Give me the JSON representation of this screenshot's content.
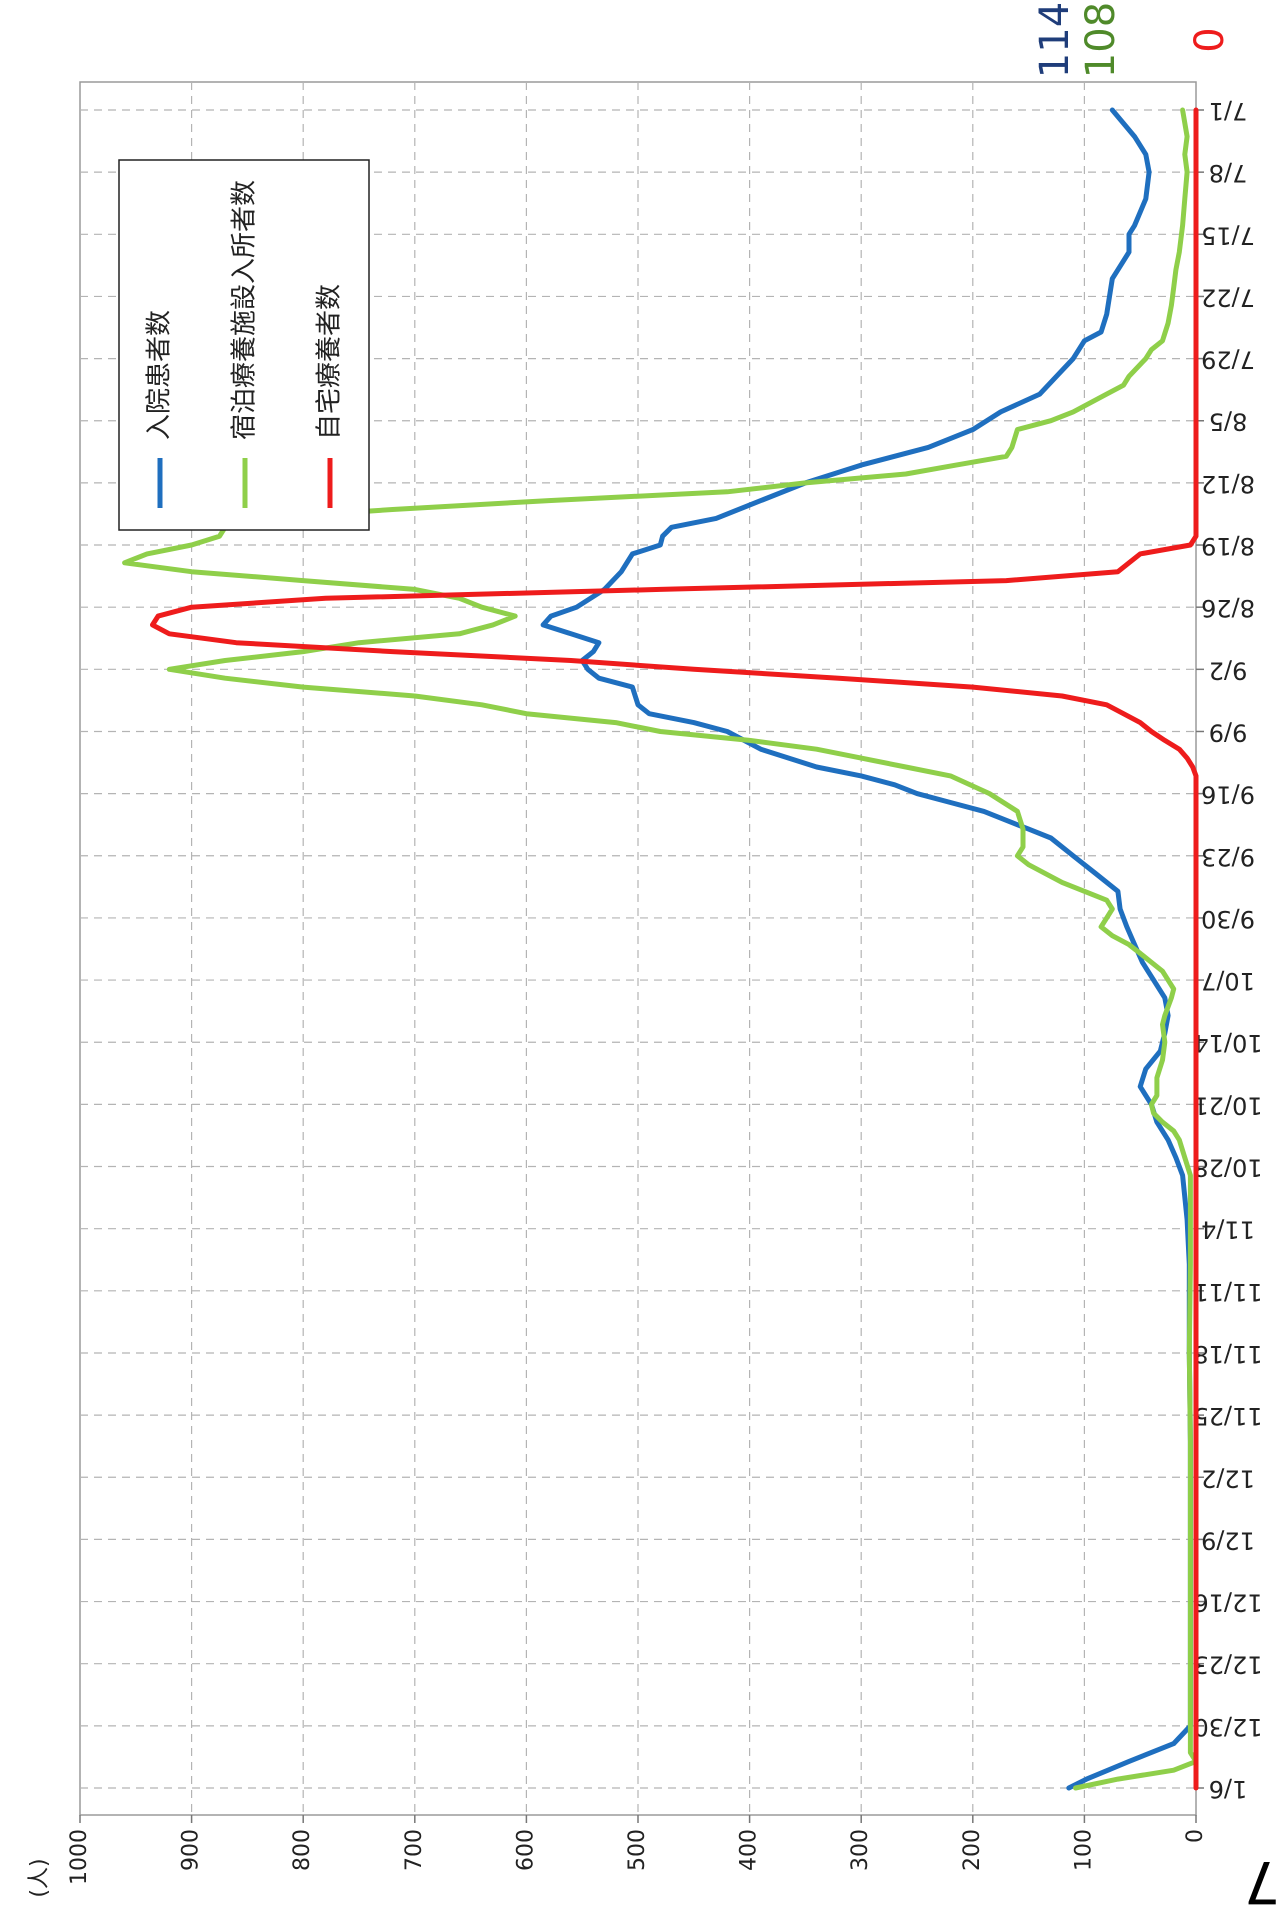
{
  "page_marker": "7",
  "chart_data": {
    "type": "line",
    "orientation": "rotated-90-clockwise",
    "title": "",
    "ylabel": "(人)",
    "ylim": [
      0,
      1000
    ],
    "yticks": [
      "0",
      "100",
      "200",
      "300",
      "400",
      "500",
      "600",
      "700",
      "800",
      "900",
      "1000"
    ],
    "xlabel": "",
    "xlim": [
      "7/1",
      "1/6"
    ],
    "xticks": [
      "7/1",
      "7/8",
      "7/15",
      "7/22",
      "7/29",
      "8/5",
      "8/12",
      "8/19",
      "8/26",
      "9/2",
      "9/9",
      "9/16",
      "9/23",
      "9/30",
      "10/7",
      "10/14",
      "10/21",
      "10/28",
      "11/4",
      "11/11",
      "11/18",
      "11/25",
      "12/2",
      "12/9",
      "12/16",
      "12/23",
      "12/30",
      "1/6"
    ],
    "grid": true,
    "legend": {
      "position": "top-left",
      "entries": [
        {
          "label": "入院患者数",
          "color": "#1f6fbf"
        },
        {
          "label": "宿泊療養施設入所者数",
          "color": "#8fcf4a"
        },
        {
          "label": "自宅療養者数",
          "color": "#ee1c1c"
        }
      ]
    },
    "end_labels": [
      {
        "text": "114",
        "color": "#1f3d7a"
      },
      {
        "text": "108",
        "color": "#4f8a2a"
      },
      {
        "text": "0",
        "color": "#ee1c1c"
      }
    ],
    "series": [
      {
        "name": "入院患者数",
        "color": "#1f6fbf",
        "points": [
          [
            0,
            75
          ],
          [
            3,
            55
          ],
          [
            5,
            45
          ],
          [
            7,
            42
          ],
          [
            10,
            45
          ],
          [
            13,
            55
          ],
          [
            14,
            60
          ],
          [
            16,
            60
          ],
          [
            18,
            70
          ],
          [
            19,
            75
          ],
          [
            23,
            80
          ],
          [
            25,
            85
          ],
          [
            26,
            100
          ],
          [
            28,
            110
          ],
          [
            30,
            125
          ],
          [
            32,
            140
          ],
          [
            34,
            175
          ],
          [
            36,
            200
          ],
          [
            38,
            240
          ],
          [
            40,
            300
          ],
          [
            42,
            350
          ],
          [
            44,
            390
          ],
          [
            46,
            430
          ],
          [
            47,
            470
          ],
          [
            48,
            478
          ],
          [
            49,
            480
          ],
          [
            50,
            505
          ],
          [
            52,
            515
          ],
          [
            54,
            530
          ],
          [
            56,
            555
          ],
          [
            57,
            578
          ],
          [
            58,
            585
          ],
          [
            59,
            560
          ],
          [
            60,
            535
          ],
          [
            61,
            540
          ],
          [
            62,
            550
          ],
          [
            63,
            545
          ],
          [
            64,
            535
          ],
          [
            65,
            505
          ],
          [
            67,
            500
          ],
          [
            68,
            490
          ],
          [
            69,
            450
          ],
          [
            70,
            420
          ],
          [
            72,
            390
          ],
          [
            74,
            340
          ],
          [
            75,
            300
          ],
          [
            76,
            270
          ],
          [
            77,
            250
          ],
          [
            78,
            220
          ],
          [
            79,
            190
          ],
          [
            80,
            170
          ],
          [
            81,
            150
          ],
          [
            82,
            130
          ],
          [
            84,
            110
          ],
          [
            86,
            90
          ],
          [
            88,
            70
          ],
          [
            90,
            68
          ],
          [
            92,
            62
          ],
          [
            94,
            55
          ],
          [
            96,
            48
          ],
          [
            98,
            38
          ],
          [
            100,
            28
          ],
          [
            102,
            25
          ],
          [
            104,
            28
          ],
          [
            106,
            32
          ],
          [
            108,
            45
          ],
          [
            110,
            50
          ],
          [
            112,
            40
          ],
          [
            114,
            35
          ],
          [
            116,
            25
          ],
          [
            118,
            18
          ],
          [
            120,
            12
          ],
          [
            125,
            8
          ],
          [
            130,
            6
          ],
          [
            140,
            6
          ],
          [
            150,
            5
          ],
          [
            155,
            5
          ],
          [
            177,
            5
          ],
          [
            182,
            5
          ],
          [
            184,
            20
          ],
          [
            186,
            60
          ],
          [
            188,
            98
          ],
          [
            189,
            114
          ]
        ]
      },
      {
        "name": "宿泊療養施設入所者数",
        "color": "#8fcf4a",
        "points": [
          [
            0,
            12
          ],
          [
            3,
            8
          ],
          [
            5,
            10
          ],
          [
            7,
            8
          ],
          [
            10,
            10
          ],
          [
            13,
            12
          ],
          [
            16,
            15
          ],
          [
            18,
            18
          ],
          [
            20,
            20
          ],
          [
            22,
            22
          ],
          [
            24,
            25
          ],
          [
            26,
            30
          ],
          [
            27,
            40
          ],
          [
            28,
            45
          ],
          [
            30,
            60
          ],
          [
            31,
            65
          ],
          [
            32,
            80
          ],
          [
            34,
            110
          ],
          [
            35,
            130
          ],
          [
            36,
            160
          ],
          [
            38,
            165
          ],
          [
            39,
            170
          ],
          [
            40,
            215
          ],
          [
            41,
            260
          ],
          [
            42,
            350
          ],
          [
            43,
            420
          ],
          [
            44,
            580
          ],
          [
            45,
            720
          ],
          [
            46,
            840
          ],
          [
            47,
            870
          ],
          [
            48,
            875
          ],
          [
            49,
            900
          ],
          [
            50,
            940
          ],
          [
            51,
            960
          ],
          [
            52,
            900
          ],
          [
            53,
            800
          ],
          [
            54,
            700
          ],
          [
            55,
            660
          ],
          [
            56,
            640
          ],
          [
            57,
            610
          ],
          [
            58,
            630
          ],
          [
            59,
            660
          ],
          [
            60,
            750
          ],
          [
            61,
            800
          ],
          [
            62,
            870
          ],
          [
            63,
            920
          ],
          [
            64,
            870
          ],
          [
            65,
            800
          ],
          [
            66,
            700
          ],
          [
            67,
            640
          ],
          [
            68,
            600
          ],
          [
            69,
            520
          ],
          [
            70,
            480
          ],
          [
            71,
            400
          ],
          [
            72,
            340
          ],
          [
            73,
            300
          ],
          [
            74,
            260
          ],
          [
            75,
            220
          ],
          [
            77,
            185
          ],
          [
            79,
            160
          ],
          [
            81,
            155
          ],
          [
            83,
            155
          ],
          [
            84,
            160
          ],
          [
            85,
            150
          ],
          [
            87,
            120
          ],
          [
            88,
            100
          ],
          [
            89,
            80
          ],
          [
            90,
            75
          ],
          [
            91,
            80
          ],
          [
            92,
            85
          ],
          [
            93,
            75
          ],
          [
            94,
            60
          ],
          [
            95,
            50
          ],
          [
            96,
            40
          ],
          [
            97,
            30
          ],
          [
            98,
            25
          ],
          [
            99,
            20
          ],
          [
            100,
            22
          ],
          [
            102,
            28
          ],
          [
            103,
            30
          ],
          [
            105,
            28
          ],
          [
            107,
            30
          ],
          [
            109,
            35
          ],
          [
            111,
            35
          ],
          [
            112,
            40
          ],
          [
            113,
            38
          ],
          [
            114,
            30
          ],
          [
            115,
            20
          ],
          [
            116,
            15
          ],
          [
            118,
            10
          ],
          [
            120,
            5
          ],
          [
            130,
            5
          ],
          [
            140,
            6
          ],
          [
            150,
            5
          ],
          [
            160,
            5
          ],
          [
            185,
            5
          ],
          [
            186,
            0
          ],
          [
            187,
            20
          ],
          [
            188,
            70
          ],
          [
            189,
            108
          ]
        ]
      },
      {
        "name": "自宅療養者数",
        "color": "#ee1c1c",
        "points": [
          [
            0,
            0
          ],
          [
            48,
            0
          ],
          [
            49,
            5
          ],
          [
            50,
            50
          ],
          [
            51,
            60
          ],
          [
            52,
            70
          ],
          [
            53,
            170
          ],
          [
            54,
            480
          ],
          [
            55,
            780
          ],
          [
            56,
            900
          ],
          [
            57,
            930
          ],
          [
            58,
            935
          ],
          [
            59,
            920
          ],
          [
            60,
            860
          ],
          [
            61,
            720
          ],
          [
            62,
            560
          ],
          [
            63,
            450
          ],
          [
            64,
            320
          ],
          [
            65,
            200
          ],
          [
            66,
            120
          ],
          [
            67,
            80
          ],
          [
            68,
            65
          ],
          [
            69,
            50
          ],
          [
            70,
            40
          ],
          [
            71,
            28
          ],
          [
            72,
            15
          ],
          [
            73,
            8
          ],
          [
            74,
            3
          ],
          [
            75,
            0
          ],
          [
            189,
            0
          ]
        ]
      }
    ]
  }
}
